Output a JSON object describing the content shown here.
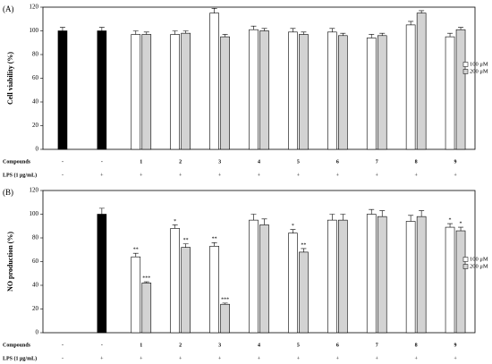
{
  "chart_data": [
    {
      "type": "bar",
      "panel_label": "(A)",
      "y_label": "Cell viability (%)",
      "row_headers": [
        "Compounds",
        "LPS (1 μg/mL)"
      ],
      "categories": [
        "-",
        "-",
        "1",
        "2",
        "3",
        "4",
        "5",
        "6",
        "7",
        "8",
        "9"
      ],
      "lps": [
        "-",
        "+",
        "+",
        "+",
        "+",
        "+",
        "+",
        "+",
        "+",
        "+",
        "+"
      ],
      "ylim": [
        0,
        120
      ],
      "yticks": [
        0,
        20,
        40,
        60,
        80,
        100,
        120
      ],
      "series": [
        {
          "color": "#000000",
          "values": [
            100,
            100,
            null,
            null,
            null,
            null,
            null,
            null,
            null,
            null,
            null
          ],
          "errors": [
            3,
            3,
            null,
            null,
            null,
            null,
            null,
            null,
            null,
            null,
            null
          ]
        },
        {
          "name": "100 μM",
          "color": "#ffffff",
          "values": [
            null,
            null,
            97,
            97,
            115,
            101,
            99,
            99,
            94,
            105,
            95
          ],
          "errors": [
            null,
            null,
            3,
            3,
            4,
            3,
            3,
            3,
            3,
            3,
            3
          ]
        },
        {
          "name": "200 μM",
          "color": "#d3d3d3",
          "values": [
            null,
            null,
            97,
            98,
            95,
            100,
            97,
            96,
            96,
            115,
            101
          ],
          "errors": [
            null,
            null,
            2,
            2,
            2,
            2,
            2,
            2,
            2,
            2,
            2
          ]
        }
      ]
    },
    {
      "type": "bar",
      "panel_label": "(B)",
      "y_label": "NO production (%)",
      "row_headers": [
        "Compounds",
        "LPS (1 μg/mL)"
      ],
      "categories": [
        "-",
        "-",
        "1",
        "2",
        "3",
        "4",
        "5",
        "6",
        "7",
        "8",
        "9"
      ],
      "lps": [
        "-",
        "+",
        "+",
        "+",
        "+",
        "+",
        "+",
        "+",
        "+",
        "+",
        "+"
      ],
      "ylim": [
        0,
        120
      ],
      "yticks": [
        0,
        20,
        40,
        60,
        80,
        100,
        120
      ],
      "series": [
        {
          "color": "#000000",
          "values": [
            0,
            100,
            null,
            null,
            null,
            null,
            null,
            null,
            null,
            null,
            null
          ],
          "errors": [
            null,
            5,
            null,
            null,
            null,
            null,
            null,
            null,
            null,
            null,
            null
          ]
        },
        {
          "name": "100 μM",
          "color": "#ffffff",
          "values": [
            null,
            null,
            64,
            88,
            73,
            95,
            84,
            95,
            100,
            94,
            89
          ],
          "errors": [
            null,
            null,
            3,
            3,
            3,
            5,
            3,
            5,
            4,
            5,
            3
          ],
          "annotations": [
            null,
            null,
            "**",
            "*",
            "**",
            null,
            "*",
            null,
            null,
            null,
            "*"
          ]
        },
        {
          "name": "200 μM",
          "color": "#d3d3d3",
          "values": [
            null,
            null,
            42,
            72,
            24,
            91,
            68,
            95,
            98,
            98,
            86
          ],
          "errors": [
            null,
            null,
            1,
            3,
            1,
            5,
            3,
            5,
            5,
            5,
            3
          ],
          "annotations": [
            null,
            null,
            "***",
            "**",
            "***",
            null,
            "**",
            null,
            null,
            null,
            "*"
          ]
        }
      ]
    }
  ]
}
